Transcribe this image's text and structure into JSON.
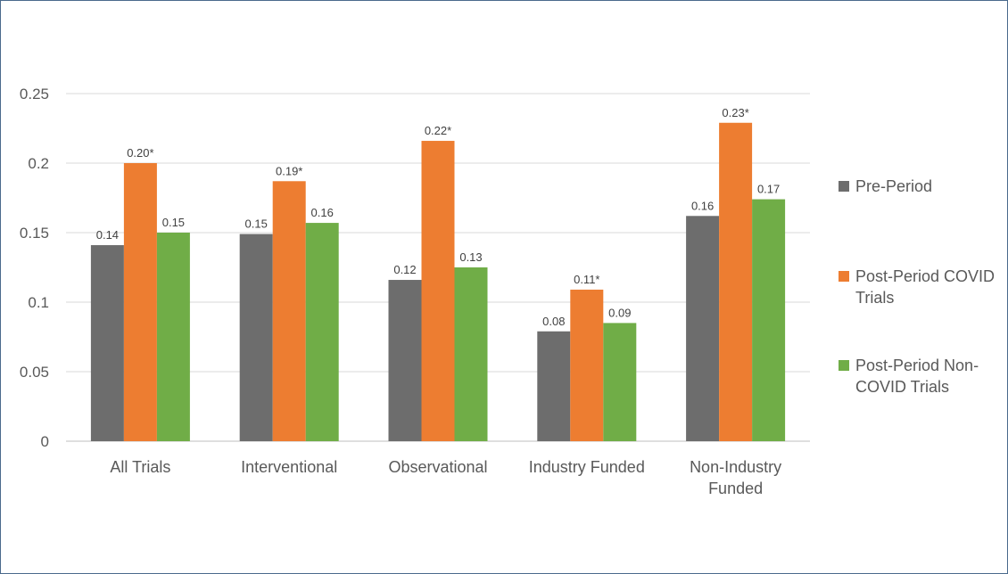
{
  "chart_data": {
    "type": "bar",
    "title": "",
    "xlabel": "",
    "ylabel": "",
    "ylim": [
      0,
      0.25
    ],
    "yticks": [
      "0",
      "0.05",
      "0.1",
      "0.15",
      "0.2",
      "0.25"
    ],
    "grid": true,
    "legend_position": "right",
    "categories": [
      [
        "All Trials"
      ],
      [
        "Interventional"
      ],
      [
        "Observational"
      ],
      [
        "Industry Funded"
      ],
      [
        "Non-Industry",
        "Funded"
      ]
    ],
    "series": [
      {
        "name": "Pre-Period",
        "legend_lines": [
          "Pre-Period"
        ],
        "color": "#6d6d6d",
        "values": [
          0.141,
          0.149,
          0.116,
          0.079,
          0.162
        ],
        "labels": [
          "0.14",
          "0.15",
          "0.12",
          "0.08",
          "0.16"
        ]
      },
      {
        "name": "Post-Period COVID Trials",
        "legend_lines": [
          "Post-Period COVID",
          "Trials"
        ],
        "color": "#ed7d31",
        "values": [
          0.2,
          0.187,
          0.216,
          0.109,
          0.229
        ],
        "labels": [
          "0.20*",
          "0.19*",
          "0.22*",
          "0.11*",
          "0.23*"
        ]
      },
      {
        "name": "Post-Period Non-COVID Trials",
        "legend_lines": [
          "Post-Period Non-",
          "COVID Trials"
        ],
        "color": "#70ad47",
        "values": [
          0.15,
          0.157,
          0.125,
          0.085,
          0.174
        ],
        "labels": [
          "0.15",
          "0.16",
          "0.13",
          "0.09",
          "0.17"
        ]
      }
    ]
  }
}
